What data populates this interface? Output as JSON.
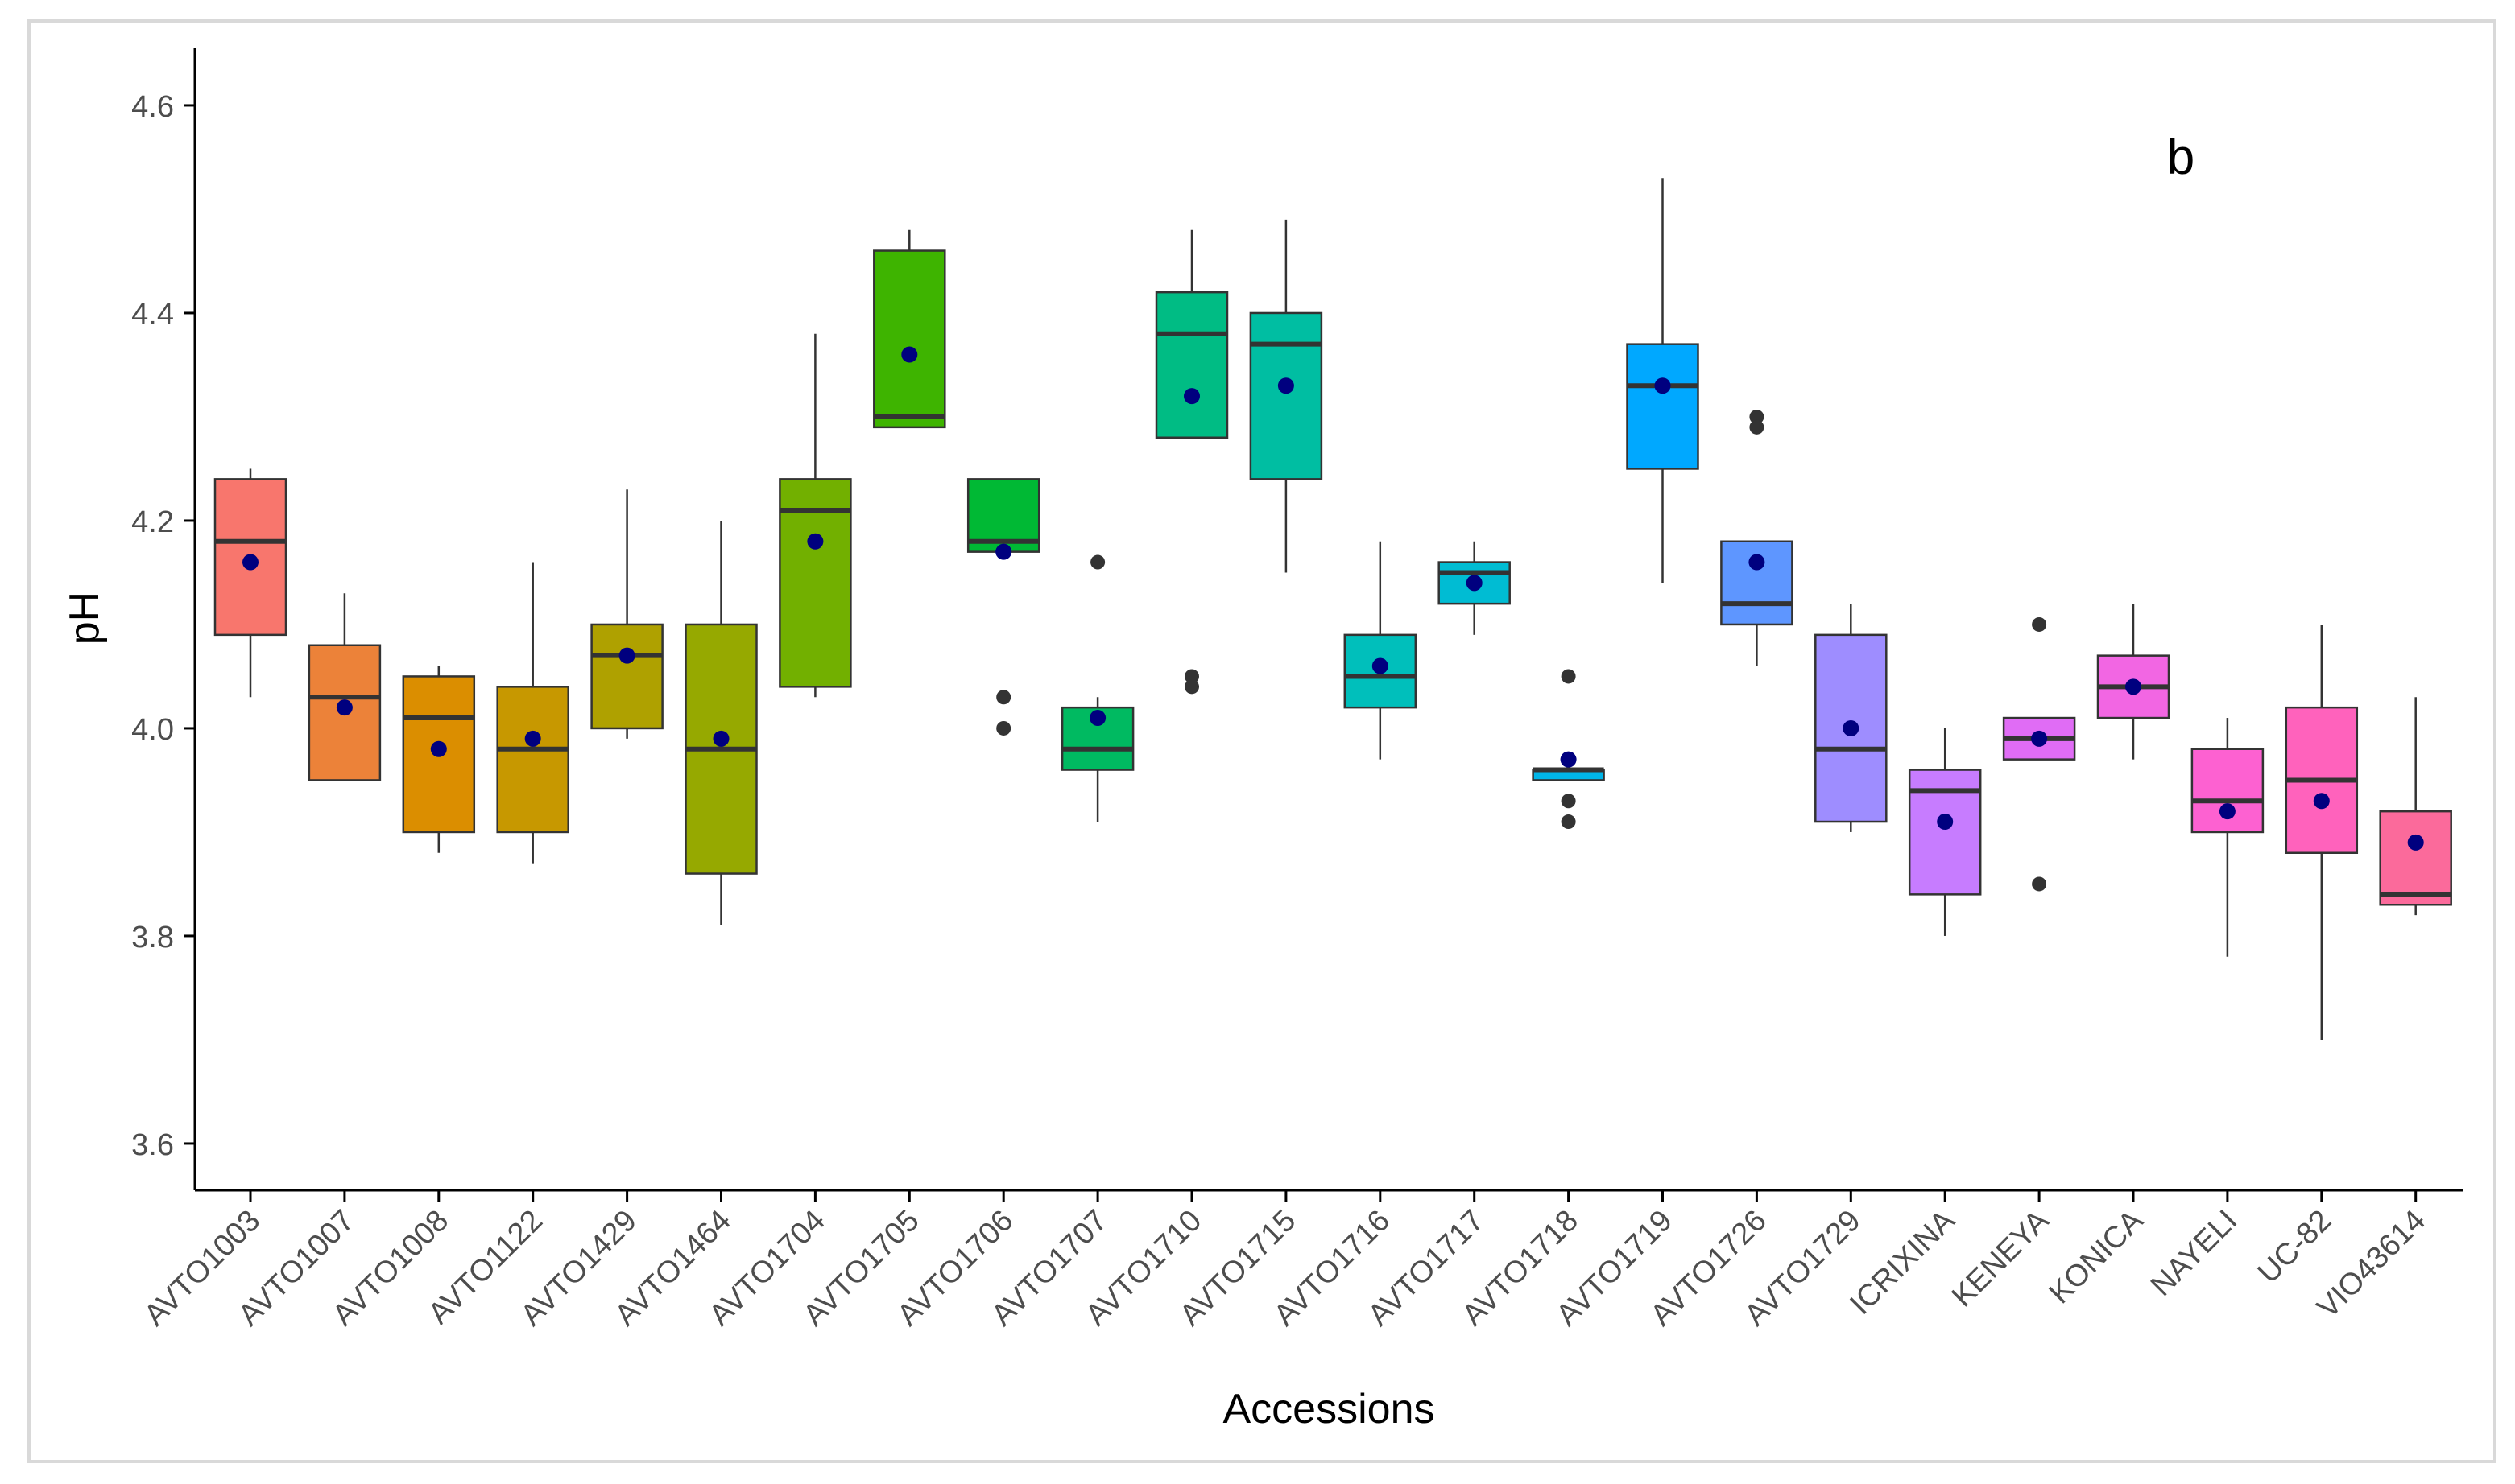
{
  "chart_data": {
    "type": "boxplot",
    "panel_label": "b",
    "xlabel": "Accessions",
    "ylabel": "pH",
    "ylim": [
      3.555,
      4.655
    ],
    "yticks": [
      3.6,
      3.8,
      4.0,
      4.2,
      4.4,
      4.6
    ],
    "ytick_labels": [
      "3.6",
      "3.8",
      "4.0",
      "4.2",
      "4.4",
      "4.6"
    ],
    "grid": false,
    "mean_color": "#00007f",
    "categories": [
      "AVTO1003",
      "AVTO1007",
      "AVTO1008",
      "AVTO1122",
      "AVTO1429",
      "AVTO1464",
      "AVTO1704",
      "AVTO1705",
      "AVTO1706",
      "AVTO1707",
      "AVTO1710",
      "AVTO1715",
      "AVTO1716",
      "AVTO1717",
      "AVTO1718",
      "AVTO1719",
      "AVTO1726",
      "AVTO1729",
      "ICRIXINA",
      "KENEYA",
      "KONICA",
      "NAYELI",
      "UC-82",
      "VIO43614"
    ],
    "boxes": [
      {
        "low": 4.03,
        "q1": 4.09,
        "median": 4.18,
        "q3": 4.24,
        "high": 4.25,
        "mean": 4.16,
        "outliers": [],
        "color": "#f8766d"
      },
      {
        "low": 3.95,
        "q1": 3.95,
        "median": 4.03,
        "q3": 4.08,
        "high": 4.13,
        "mean": 4.02,
        "outliers": [],
        "color": "#ec8239"
      },
      {
        "low": 3.88,
        "q1": 3.9,
        "median": 4.01,
        "q3": 4.05,
        "high": 4.06,
        "mean": 3.98,
        "outliers": [],
        "color": "#db8e00"
      },
      {
        "low": 3.87,
        "q1": 3.9,
        "median": 3.98,
        "q3": 4.04,
        "high": 4.16,
        "mean": 3.99,
        "outliers": [],
        "color": "#c79800"
      },
      {
        "low": 3.99,
        "q1": 4.0,
        "median": 4.07,
        "q3": 4.1,
        "high": 4.23,
        "mean": 4.07,
        "outliers": [],
        "color": "#afa100"
      },
      {
        "low": 3.81,
        "q1": 3.86,
        "median": 3.98,
        "q3": 4.1,
        "high": 4.2,
        "mean": 3.99,
        "outliers": [],
        "color": "#96a900"
      },
      {
        "low": 4.03,
        "q1": 4.04,
        "median": 4.21,
        "q3": 4.24,
        "high": 4.38,
        "mean": 4.18,
        "outliers": [],
        "color": "#72b000"
      },
      {
        "low": 4.29,
        "q1": 4.29,
        "median": 4.3,
        "q3": 4.46,
        "high": 4.48,
        "mean": 4.36,
        "outliers": [],
        "color": "#3eb400"
      },
      {
        "low": 4.17,
        "q1": 4.17,
        "median": 4.18,
        "q3": 4.24,
        "high": 4.24,
        "mean": 4.17,
        "outliers": [
          4.03,
          4.0
        ],
        "color": "#00b934"
      },
      {
        "low": 3.91,
        "q1": 3.96,
        "median": 3.98,
        "q3": 4.02,
        "high": 4.03,
        "mean": 4.01,
        "outliers": [
          4.16
        ],
        "color": "#00ba61"
      },
      {
        "low": 4.28,
        "q1": 4.28,
        "median": 4.38,
        "q3": 4.42,
        "high": 4.48,
        "mean": 4.32,
        "outliers": [
          4.05,
          4.04
        ],
        "color": "#00bc84"
      },
      {
        "low": 4.15,
        "q1": 4.24,
        "median": 4.37,
        "q3": 4.4,
        "high": 4.49,
        "mean": 4.33,
        "outliers": [],
        "color": "#00bea2"
      },
      {
        "low": 3.97,
        "q1": 4.02,
        "median": 4.05,
        "q3": 4.09,
        "high": 4.18,
        "mean": 4.06,
        "outliers": [],
        "color": "#00bfbb"
      },
      {
        "low": 4.09,
        "q1": 4.12,
        "median": 4.15,
        "q3": 4.16,
        "high": 4.18,
        "mean": 4.14,
        "outliers": [],
        "color": "#00bcd3"
      },
      {
        "low": 3.95,
        "q1": 3.95,
        "median": 3.96,
        "q3": 3.96,
        "high": 3.96,
        "mean": 3.97,
        "outliers": [
          4.05,
          3.93,
          3.91
        ],
        "color": "#00b5e8"
      },
      {
        "low": 4.14,
        "q1": 4.25,
        "median": 4.33,
        "q3": 4.37,
        "high": 4.53,
        "mean": 4.33,
        "outliers": [],
        "color": "#00a8ff"
      },
      {
        "low": 4.06,
        "q1": 4.1,
        "median": 4.12,
        "q3": 4.18,
        "high": 4.18,
        "mean": 4.16,
        "outliers": [
          4.3,
          4.29
        ],
        "color": "#5e96ff"
      },
      {
        "low": 3.9,
        "q1": 3.91,
        "median": 3.98,
        "q3": 4.09,
        "high": 4.12,
        "mean": 4.0,
        "outliers": [],
        "color": "#9e8dff"
      },
      {
        "low": 3.8,
        "q1": 3.84,
        "median": 3.94,
        "q3": 3.96,
        "high": 4.0,
        "mean": 3.91,
        "outliers": [],
        "color": "#c77cff"
      },
      {
        "low": 3.97,
        "q1": 3.97,
        "median": 3.99,
        "q3": 4.01,
        "high": 4.01,
        "mean": 3.99,
        "outliers": [
          4.1,
          3.85
        ],
        "color": "#e06cf5"
      },
      {
        "low": 3.97,
        "q1": 4.01,
        "median": 4.04,
        "q3": 4.07,
        "high": 4.12,
        "mean": 4.04,
        "outliers": [],
        "color": "#f266e3"
      },
      {
        "low": 3.78,
        "q1": 3.9,
        "median": 3.93,
        "q3": 3.98,
        "high": 4.01,
        "mean": 3.92,
        "outliers": [],
        "color": "#fd61d1"
      },
      {
        "low": 3.7,
        "q1": 3.88,
        "median": 3.95,
        "q3": 4.02,
        "high": 4.1,
        "mean": 3.93,
        "outliers": [],
        "color": "#ff62bc"
      },
      {
        "low": 3.82,
        "q1": 3.83,
        "median": 3.84,
        "q3": 3.92,
        "high": 4.03,
        "mean": 3.89,
        "outliers": [],
        "color": "#fb6a9b"
      }
    ]
  }
}
